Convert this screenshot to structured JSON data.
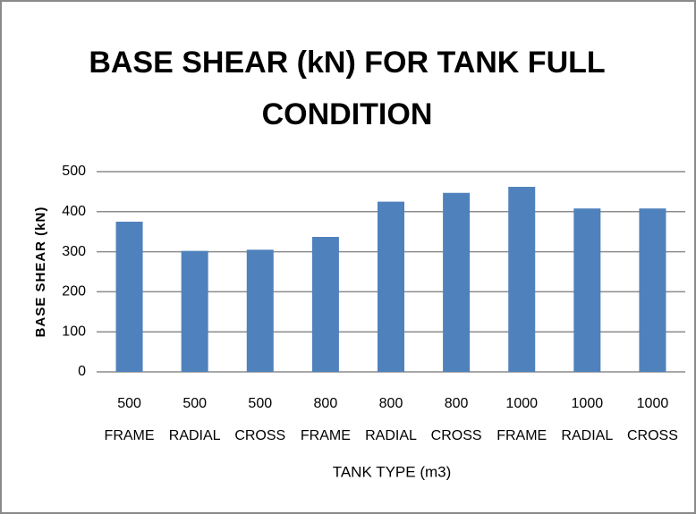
{
  "chart_data": {
    "type": "bar",
    "title": "BASE SHEAR (kN) FOR TANK FULL CONDITION",
    "xlabel": "TANK TYPE (m3)",
    "ylabel": "BASE SHEAR (kN)",
    "categories": [
      "500 FRAME",
      "500 RADIAL",
      "500 CROSS",
      "800 FRAME",
      "800 RADIAL",
      "800 CROSS",
      "1000 FRAME",
      "1000 RADIAL",
      "1000 CROSS"
    ],
    "values": [
      375,
      302,
      305,
      337,
      425,
      447,
      462,
      408,
      408
    ],
    "color": "#4f81bd",
    "ylim": [
      0,
      500
    ],
    "yticks": [
      0,
      100,
      200,
      300,
      400,
      500
    ],
    "grid": true
  }
}
